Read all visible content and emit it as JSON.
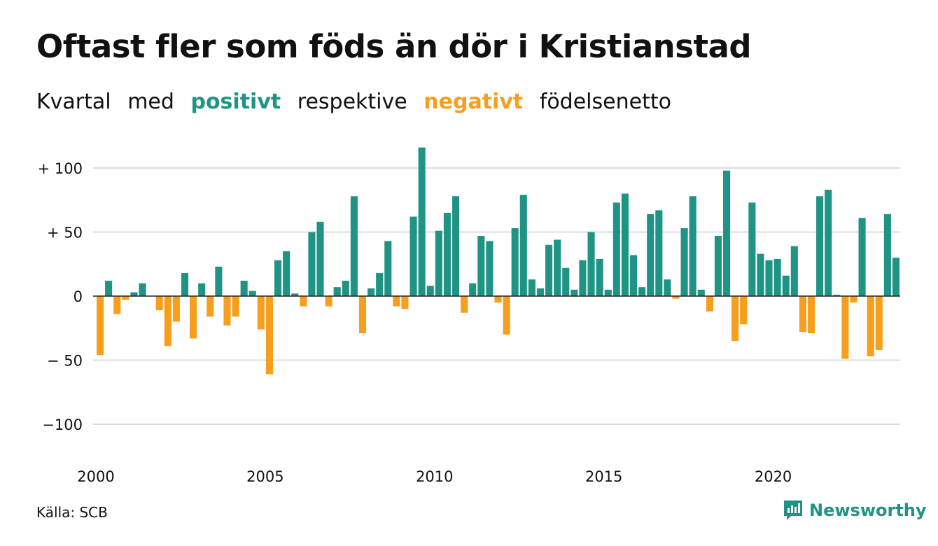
{
  "title": "Oftast fler som föds än dör i Kristianstad",
  "subtitle": {
    "part1": "Kvartal",
    "part2": "med",
    "positive": "positivt",
    "part3": "respektive",
    "negative": "negativt",
    "part4": "födelsenetto"
  },
  "source": "Källa: SCB",
  "brand": "Newsworthy",
  "colors": {
    "positive": "#1f9384",
    "negative": "#f59f1c",
    "grid": "#dddddd",
    "zero": "#222222"
  },
  "chart_data": {
    "type": "bar",
    "x_start": 2000,
    "periods_per_year": 4,
    "ylim": [
      -120,
      118
    ],
    "y_ticks": [
      {
        "value": 100,
        "label": "+ 100"
      },
      {
        "value": 50,
        "label": "+  50"
      },
      {
        "value": 0,
        "label": "0"
      },
      {
        "value": -50,
        "label": "− 50"
      },
      {
        "value": -100,
        "label": "−100"
      }
    ],
    "x_ticks": [
      {
        "value": 2000,
        "label": "2000"
      },
      {
        "value": 2005,
        "label": "2005"
      },
      {
        "value": 2010,
        "label": "2010"
      },
      {
        "value": 2015,
        "label": "2015"
      },
      {
        "value": 2020,
        "label": "2020"
      }
    ],
    "grid": true,
    "values": [
      -46,
      12,
      -14,
      -3,
      3,
      10,
      0,
      -11,
      -39,
      -20,
      18,
      -33,
      10,
      -16,
      23,
      -23,
      -16,
      12,
      4,
      -26,
      -61,
      28,
      35,
      2,
      -8,
      50,
      58,
      -8,
      7,
      12,
      78,
      -29,
      6,
      18,
      43,
      -8,
      -10,
      62,
      116,
      8,
      51,
      65,
      78,
      -13,
      10,
      47,
      43,
      -5,
      -30,
      53,
      79,
      13,
      6,
      40,
      44,
      22,
      5,
      28,
      50,
      29,
      5,
      73,
      80,
      32,
      7,
      64,
      67,
      13,
      -2,
      53,
      78,
      5,
      -12,
      47,
      98,
      -35,
      -22,
      73,
      33,
      28,
      29,
      16,
      39,
      -28,
      -29,
      78,
      83,
      1,
      -49,
      -5,
      61,
      -47,
      -42,
      64,
      30
    ]
  }
}
